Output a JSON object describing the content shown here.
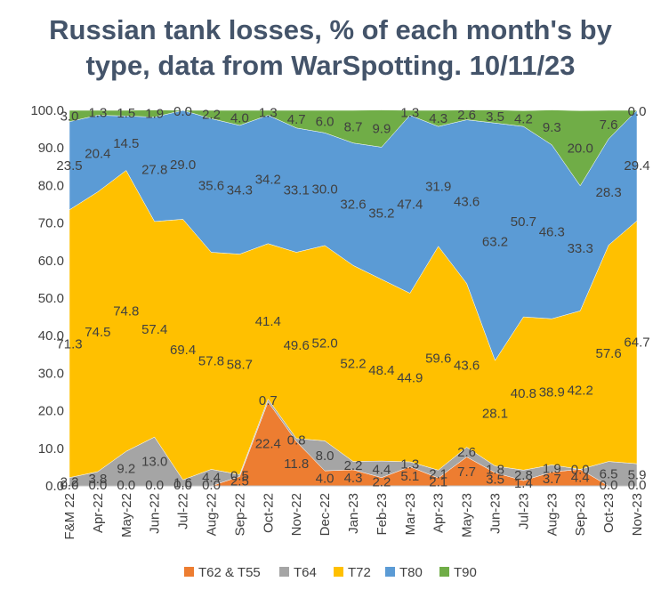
{
  "chart_data": {
    "type": "area",
    "stacked": true,
    "title": "Russian tank losses, % of each month's by type, data from WarSpotting. 10/11/23",
    "categories": [
      "F&M 22",
      "Apr-22",
      "May-22",
      "Jun-22",
      "Jul-22",
      "Aug-22",
      "Sep-22",
      "Oct-22",
      "Nov-22",
      "Dec-22",
      "Jan-23",
      "Feb-23",
      "Mar-23",
      "Apr-23",
      "May-23",
      "Jun-23",
      "Jul-23",
      "Aug-23",
      "Sep-23",
      "Oct-23",
      "Nov-23"
    ],
    "y_ticks": [
      "0.0",
      "10.0",
      "20.0",
      "30.0",
      "40.0",
      "50.0",
      "60.0",
      "70.0",
      "80.0",
      "90.0",
      "100.0"
    ],
    "ylim": [
      0,
      100
    ],
    "legend_position": "bottom",
    "series": [
      {
        "name": "T62 & T55",
        "color": "#ed7d31",
        "values": [
          0.0,
          0.0,
          0.0,
          0.0,
          0.0,
          0.0,
          2.5,
          22.4,
          11.8,
          4.0,
          4.3,
          2.2,
          5.1,
          2.1,
          7.7,
          3.5,
          1.4,
          3.7,
          4.4,
          0.0,
          0.0
        ],
        "labels": [
          "0.0",
          "0.0",
          "0.0",
          "0.0",
          "0.0",
          "0.0",
          "2.5",
          "22.4",
          "11.8",
          "4.0",
          "4.3",
          "2.2",
          "5.1",
          "2.1",
          "7.7",
          "3.5",
          "1.4",
          "3.7",
          "4.4",
          "0.0",
          "0.0"
        ]
      },
      {
        "name": "T64",
        "color": "#a5a5a5",
        "values": [
          2.2,
          3.8,
          9.2,
          13.0,
          1.6,
          4.4,
          0.5,
          0.7,
          0.8,
          8.0,
          2.2,
          4.4,
          1.3,
          2.1,
          2.6,
          1.8,
          2.8,
          1.9,
          0.0,
          6.5,
          5.9
        ],
        "labels": [
          "2.2",
          "3.8",
          "9.2",
          "13.0",
          "1.6",
          "4.4",
          "0.5",
          "0.7",
          "0.8",
          "8.0",
          "2.2",
          "4.4",
          "1.3",
          "2.1",
          "2.6",
          "1.8",
          "2.8",
          "1.9",
          "0.0",
          "6.5",
          "5.9"
        ]
      },
      {
        "name": "T72",
        "color": "#ffc000",
        "values": [
          71.3,
          74.5,
          74.8,
          57.4,
          69.4,
          57.8,
          58.7,
          41.4,
          49.6,
          52.0,
          52.2,
          48.4,
          44.9,
          59.6,
          43.6,
          28.1,
          40.8,
          38.9,
          42.2,
          57.6,
          64.7
        ],
        "labels": [
          "71.3",
          "74.5",
          "74.8",
          "57.4",
          "69.4",
          "57.8",
          "58.7",
          "41.4",
          "49.6",
          "52.0",
          "52.2",
          "48.4",
          "44.9",
          "59.6",
          "43.6",
          "28.1",
          "40.8",
          "38.9",
          "42.2",
          "57.6",
          "64.7"
        ]
      },
      {
        "name": "T80",
        "color": "#5b9bd5",
        "values": [
          23.5,
          20.4,
          14.5,
          27.8,
          29.0,
          35.6,
          34.3,
          34.2,
          33.1,
          30.0,
          32.6,
          35.2,
          47.4,
          31.9,
          43.6,
          63.2,
          50.7,
          46.3,
          33.3,
          28.3,
          29.4
        ],
        "labels": [
          "23.5",
          "20.4",
          "14.5",
          "27.8",
          "29.0",
          "35.6",
          "34.3",
          "34.2",
          "33.1",
          "30.0",
          "32.6",
          "35.2",
          "47.4",
          "31.9",
          "43.6",
          "63.2",
          "50.7",
          "46.3",
          "33.3",
          "28.3",
          "29.4"
        ]
      },
      {
        "name": "T90",
        "color": "#70ad47",
        "values": [
          3.0,
          1.3,
          1.5,
          1.9,
          0.0,
          2.2,
          4.0,
          1.3,
          4.7,
          6.0,
          8.7,
          9.9,
          1.3,
          4.3,
          2.6,
          3.5,
          4.2,
          9.3,
          20.0,
          7.6,
          0.0
        ],
        "labels": [
          "3.0",
          "1.3",
          "1.5",
          "1.9",
          "0.0",
          "2.2",
          "4.0",
          "1.3",
          "4.7",
          "6.0",
          "8.7",
          "9.9",
          "1.3",
          "4.3",
          "2.6",
          "3.5",
          "4.2",
          "9.3",
          "20.0",
          "7.6",
          "0.0"
        ]
      }
    ]
  }
}
